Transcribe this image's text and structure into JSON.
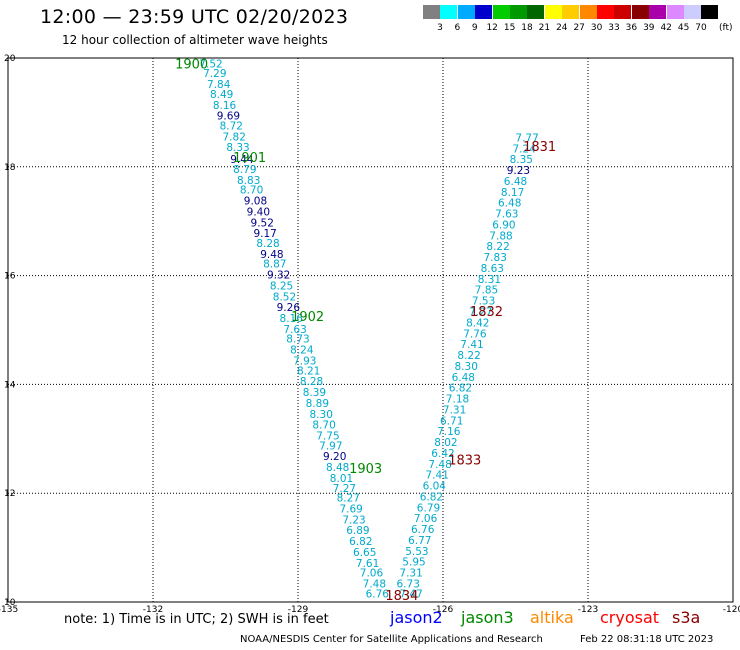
{
  "header": {
    "title": "12:00 — 23:59 UTC 02/20/2023",
    "subtitle": "12 hour collection of altimeter wave heights"
  },
  "colorbar": {
    "unit": "(ft)",
    "bins": [
      {
        "color": "#808080",
        "label": "3"
      },
      {
        "color": "#00ffff",
        "label": "6"
      },
      {
        "color": "#00aaff",
        "label": "9"
      },
      {
        "color": "#0000cc",
        "label": "12"
      },
      {
        "color": "#00cc00",
        "label": "15"
      },
      {
        "color": "#009900",
        "label": "18"
      },
      {
        "color": "#006600",
        "label": "21"
      },
      {
        "color": "#ffff00",
        "label": "24"
      },
      {
        "color": "#ffcc00",
        "label": "27"
      },
      {
        "color": "#ff8800",
        "label": "30"
      },
      {
        "color": "#ff0000",
        "label": "33"
      },
      {
        "color": "#cc0000",
        "label": "36"
      },
      {
        "color": "#880000",
        "label": "39"
      },
      {
        "color": "#aa00aa",
        "label": "42"
      },
      {
        "color": "#dd88ff",
        "label": "45"
      },
      {
        "color": "#ccccff",
        "label": "70"
      },
      {
        "color": "#000000",
        "label": ""
      }
    ]
  },
  "colors": {
    "light_swh": "#00aacc",
    "high_swh": "#000088",
    "jason3": "#008800",
    "cryosat": "#880000"
  },
  "footer": {
    "note": "note:  1) Time is in UTC;  2) SWH is in feet",
    "satellites": [
      {
        "name": "jason2",
        "color": "#0000ff"
      },
      {
        "name": "jason3",
        "color": "#008800"
      },
      {
        "name": "altika",
        "color": "#ff8800"
      },
      {
        "name": "cryosat",
        "color": "#ff0000"
      },
      {
        "name": "s3a",
        "color": "#880000"
      }
    ],
    "credit": "NOAA/NESDIS Center for Satellite Applications and Research",
    "timestamp": "Feb 22 08:31:18 UTC 2023"
  },
  "chart_data": {
    "type": "scatter",
    "xlim": [
      -135,
      -120
    ],
    "ylim": [
      10,
      20
    ],
    "x_ticks": [
      "-135",
      "-132",
      "-129",
      "-126",
      "-123",
      "-120"
    ],
    "y_ticks": [
      "10",
      "12",
      "14",
      "16",
      "18",
      "20"
    ],
    "grid": true,
    "series": [
      {
        "track": "descending",
        "points": [
          {
            "x": -130.8,
            "y": 19.9,
            "v": "7.52"
          },
          {
            "x": -130.72,
            "y": 19.72,
            "v": "7.29"
          },
          {
            "x": -130.64,
            "y": 19.52,
            "v": "7.84"
          },
          {
            "x": -130.58,
            "y": 19.34,
            "v": "8.49"
          },
          {
            "x": -130.52,
            "y": 19.14,
            "v": "8.16"
          },
          {
            "x": -130.44,
            "y": 18.94,
            "v": "9.69"
          },
          {
            "x": -130.38,
            "y": 18.76,
            "v": "8.72"
          },
          {
            "x": -130.32,
            "y": 18.56,
            "v": "7.82"
          },
          {
            "x": -130.24,
            "y": 18.36,
            "v": "8.33"
          },
          {
            "x": -130.16,
            "y": 18.14,
            "v": "9.44"
          },
          {
            "x": -130.1,
            "y": 17.96,
            "v": "8.79"
          },
          {
            "x": -130.02,
            "y": 17.76,
            "v": "8.83"
          },
          {
            "x": -129.96,
            "y": 17.58,
            "v": "8.70"
          },
          {
            "x": -129.88,
            "y": 17.38,
            "v": "9.08"
          },
          {
            "x": -129.82,
            "y": 17.18,
            "v": "9.40"
          },
          {
            "x": -129.74,
            "y": 16.98,
            "v": "9.52"
          },
          {
            "x": -129.68,
            "y": 16.78,
            "v": "9.17"
          },
          {
            "x": -129.62,
            "y": 16.6,
            "v": "8.28"
          },
          {
            "x": -129.54,
            "y": 16.4,
            "v": "9.48"
          },
          {
            "x": -129.48,
            "y": 16.22,
            "v": "8.87"
          },
          {
            "x": -129.4,
            "y": 16.02,
            "v": "9.32"
          },
          {
            "x": -129.34,
            "y": 15.82,
            "v": "8.25"
          },
          {
            "x": -129.28,
            "y": 15.62,
            "v": "8.52"
          },
          {
            "x": -129.2,
            "y": 15.42,
            "v": "9.26"
          },
          {
            "x": -129.14,
            "y": 15.22,
            "v": "8.16"
          },
          {
            "x": -129.06,
            "y": 15.02,
            "v": "7.63"
          },
          {
            "x": -129.0,
            "y": 14.84,
            "v": "8.73"
          },
          {
            "x": -128.92,
            "y": 14.64,
            "v": "8.24"
          },
          {
            "x": -128.86,
            "y": 14.44,
            "v": "7.93"
          },
          {
            "x": -128.78,
            "y": 14.26,
            "v": "8.21"
          },
          {
            "x": -128.72,
            "y": 14.06,
            "v": "8.28"
          },
          {
            "x": -128.66,
            "y": 13.86,
            "v": "8.39"
          },
          {
            "x": -128.6,
            "y": 13.66,
            "v": "8.89"
          },
          {
            "x": -128.52,
            "y": 13.46,
            "v": "8.30"
          },
          {
            "x": -128.46,
            "y": 13.26,
            "v": "8.70"
          },
          {
            "x": -128.38,
            "y": 13.06,
            "v": "7.75"
          },
          {
            "x": -128.32,
            "y": 12.88,
            "v": "7.97"
          },
          {
            "x": -128.24,
            "y": 12.68,
            "v": "9.20"
          },
          {
            "x": -128.18,
            "y": 12.48,
            "v": "8.48"
          },
          {
            "x": -128.1,
            "y": 12.28,
            "v": "8.01"
          },
          {
            "x": -128.04,
            "y": 12.1,
            "v": "7.27"
          },
          {
            "x": -127.96,
            "y": 11.92,
            "v": "8.27"
          },
          {
            "x": -127.9,
            "y": 11.72,
            "v": "7.69"
          },
          {
            "x": -127.84,
            "y": 11.52,
            "v": "7.23"
          },
          {
            "x": -127.76,
            "y": 11.32,
            "v": "6.89"
          },
          {
            "x": -127.7,
            "y": 11.12,
            "v": "6.82"
          },
          {
            "x": -127.62,
            "y": 10.92,
            "v": "6.65"
          },
          {
            "x": -127.56,
            "y": 10.72,
            "v": "7.61"
          },
          {
            "x": -127.48,
            "y": 10.54,
            "v": "7.06"
          },
          {
            "x": -127.42,
            "y": 10.34,
            "v": "7.48"
          },
          {
            "x": -127.36,
            "y": 10.16,
            "v": "6.76"
          }
        ]
      },
      {
        "track": "ascending",
        "points": [
          {
            "x": -126.66,
            "y": 10.16,
            "v": "7.47"
          },
          {
            "x": -126.72,
            "y": 10.34,
            "v": "6.73"
          },
          {
            "x": -126.66,
            "y": 10.54,
            "v": "7.31"
          },
          {
            "x": -126.6,
            "y": 10.74,
            "v": "5.95"
          },
          {
            "x": -126.54,
            "y": 10.94,
            "v": "5.53"
          },
          {
            "x": -126.48,
            "y": 11.14,
            "v": "6.77"
          },
          {
            "x": -126.42,
            "y": 11.34,
            "v": "6.76"
          },
          {
            "x": -126.36,
            "y": 11.54,
            "v": "7.06"
          },
          {
            "x": -126.3,
            "y": 11.74,
            "v": "6.79"
          },
          {
            "x": -126.24,
            "y": 11.94,
            "v": "6.82"
          },
          {
            "x": -126.18,
            "y": 12.14,
            "v": "6.04"
          },
          {
            "x": -126.12,
            "y": 12.34,
            "v": "7.41"
          },
          {
            "x": -126.06,
            "y": 12.54,
            "v": "7.48"
          },
          {
            "x": -126.0,
            "y": 12.74,
            "v": "6.42"
          },
          {
            "x": -125.94,
            "y": 12.94,
            "v": "8.02"
          },
          {
            "x": -125.88,
            "y": 13.14,
            "v": "7.16"
          },
          {
            "x": -125.82,
            "y": 13.34,
            "v": "6.71"
          },
          {
            "x": -125.76,
            "y": 13.54,
            "v": "7.31"
          },
          {
            "x": -125.7,
            "y": 13.74,
            "v": "7.18"
          },
          {
            "x": -125.64,
            "y": 13.94,
            "v": "6.82"
          },
          {
            "x": -125.58,
            "y": 14.14,
            "v": "6.48"
          },
          {
            "x": -125.52,
            "y": 14.34,
            "v": "8.30"
          },
          {
            "x": -125.46,
            "y": 14.54,
            "v": "8.22"
          },
          {
            "x": -125.4,
            "y": 14.74,
            "v": "7.41"
          },
          {
            "x": -125.34,
            "y": 14.94,
            "v": "7.76"
          },
          {
            "x": -125.28,
            "y": 15.14,
            "v": "8.42"
          },
          {
            "x": -125.22,
            "y": 15.34,
            "v": "7.27"
          },
          {
            "x": -125.16,
            "y": 15.54,
            "v": "7.53"
          },
          {
            "x": -125.1,
            "y": 15.74,
            "v": "7.85"
          },
          {
            "x": -125.04,
            "y": 15.94,
            "v": "8.31"
          },
          {
            "x": -124.98,
            "y": 16.14,
            "v": "8.63"
          },
          {
            "x": -124.92,
            "y": 16.34,
            "v": "7.83"
          },
          {
            "x": -124.86,
            "y": 16.54,
            "v": "8.22"
          },
          {
            "x": -124.8,
            "y": 16.74,
            "v": "7.88"
          },
          {
            "x": -124.74,
            "y": 16.94,
            "v": "6.90"
          },
          {
            "x": -124.68,
            "y": 17.14,
            "v": "7.63"
          },
          {
            "x": -124.62,
            "y": 17.34,
            "v": "6.48"
          },
          {
            "x": -124.56,
            "y": 17.54,
            "v": "8.17"
          },
          {
            "x": -124.5,
            "y": 17.74,
            "v": "6.48"
          },
          {
            "x": -124.44,
            "y": 17.94,
            "v": "9.23"
          },
          {
            "x": -124.38,
            "y": 18.14,
            "v": "8.35"
          },
          {
            "x": -124.32,
            "y": 18.34,
            "v": "7.24"
          },
          {
            "x": -124.26,
            "y": 18.54,
            "v": "7.77"
          }
        ]
      }
    ],
    "time_labels": [
      {
        "text": "1900",
        "x": -131.2,
        "y": 19.9,
        "color": "#008800"
      },
      {
        "text": "1901",
        "x": -130.0,
        "y": 18.18,
        "color": "#008800"
      },
      {
        "text": "1902",
        "x": -128.8,
        "y": 15.26,
        "color": "#008800"
      },
      {
        "text": "1903",
        "x": -127.6,
        "y": 12.46,
        "color": "#008800"
      },
      {
        "text": "1831",
        "x": -124.0,
        "y": 18.38,
        "color": "#880000"
      },
      {
        "text": "1832",
        "x": -125.1,
        "y": 15.35,
        "color": "#880000"
      },
      {
        "text": "1833",
        "x": -125.55,
        "y": 12.62,
        "color": "#880000"
      },
      {
        "text": "1834",
        "x": -126.85,
        "y": 10.13,
        "color": "#880000"
      }
    ]
  }
}
